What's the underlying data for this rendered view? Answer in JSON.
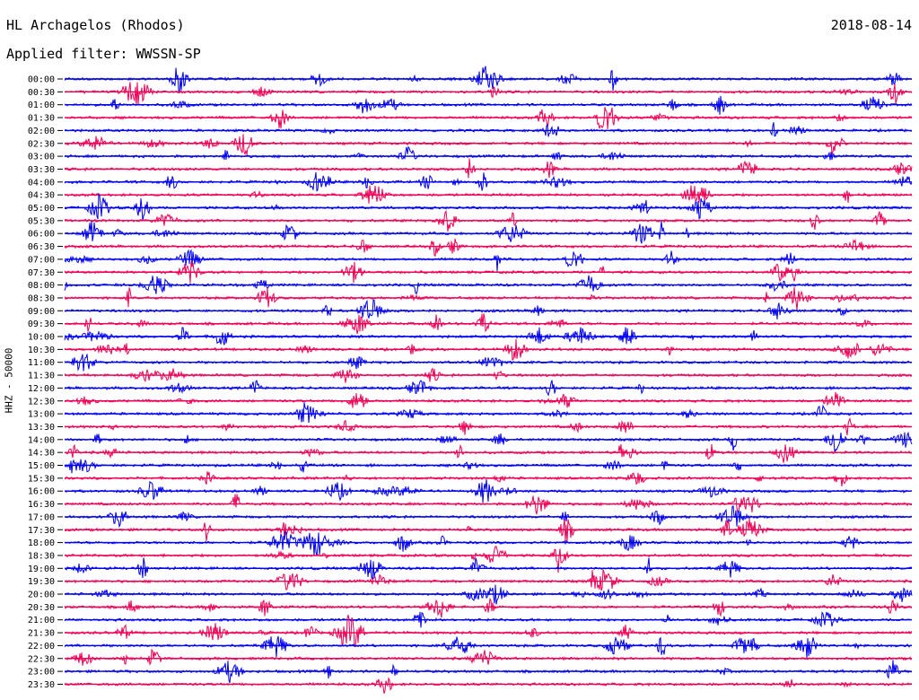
{
  "header": {
    "station": "HL Archagelos (Rhodos)",
    "date": "2018-08-14",
    "filter": "Applied filter: WWSSN-SP"
  },
  "y_axis_label": "HHZ - 50000",
  "colors": {
    "blue": "#0000ee",
    "red": "#ee0055",
    "text": "#000000"
  },
  "chart_data": {
    "type": "line",
    "kind": "helicorder",
    "ylabel": "HHZ - 50000",
    "title": "HL Archagelos (Rhodos)",
    "date": "2018-08-14",
    "trace_colors_alternate": [
      "blue",
      "red"
    ],
    "rows": [
      "00:00",
      "00:30",
      "01:00",
      "01:30",
      "02:00",
      "02:30",
      "03:00",
      "03:30",
      "04:00",
      "04:30",
      "05:00",
      "05:30",
      "06:00",
      "06:30",
      "07:00",
      "07:30",
      "08:00",
      "08:30",
      "09:00",
      "09:30",
      "10:00",
      "10:30",
      "11:00",
      "11:30",
      "12:00",
      "12:30",
      "13:00",
      "13:30",
      "14:00",
      "14:30",
      "15:00",
      "15:30",
      "16:00",
      "16:30",
      "17:00",
      "17:30",
      "18:00",
      "18:30",
      "19:00",
      "19:30",
      "20:00",
      "20:30",
      "21:00",
      "21:30",
      "22:00",
      "22:30",
      "23:00",
      "23:30"
    ]
  }
}
